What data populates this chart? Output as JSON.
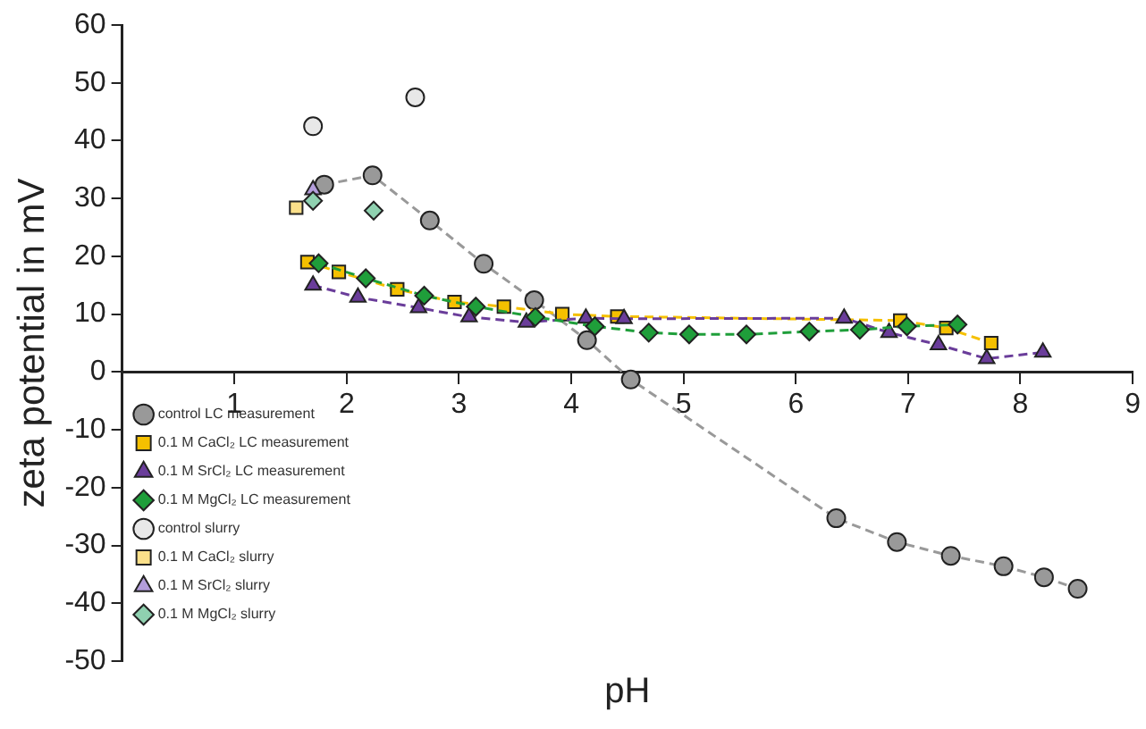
{
  "chart_data": {
    "type": "line",
    "xlabel": "pH",
    "ylabel": "zeta potential in mV",
    "xlim": [
      0,
      9
    ],
    "xticks": [
      1,
      2,
      3,
      4,
      5,
      6,
      7,
      8,
      9
    ],
    "ylim": [
      -50,
      60
    ],
    "yticks": [
      -50,
      -40,
      -30,
      -20,
      -10,
      0,
      10,
      20,
      30,
      40,
      50,
      60
    ],
    "grid": false,
    "legend": "bottom left",
    "series": [
      {
        "name": "control LC measurement",
        "type": "line",
        "color": "#999999",
        "marker": "circle",
        "line_style": "dashed",
        "x": [
          1.8,
          2.23,
          2.74,
          3.22,
          3.67,
          4.14,
          4.53,
          6.36,
          6.9,
          7.38,
          7.85,
          8.21,
          8.51
        ],
        "values": [
          32.4,
          34,
          26.2,
          18.7,
          12.4,
          5.5,
          -1.3,
          -25.3,
          -29.4,
          -31.8,
          -33.6,
          -35.5,
          -37.5
        ]
      },
      {
        "name": "0.1 M CaCl₂ LC measurement",
        "type": "line",
        "color": "#f5c000",
        "marker": "square",
        "line_style": "dashed",
        "x": [
          1.65,
          1.93,
          2.45,
          2.96,
          3.4,
          3.92,
          4.41,
          6.93,
          7.34,
          7.74
        ],
        "values": [
          19,
          17.3,
          14.3,
          12.1,
          11.3,
          10,
          9.6,
          8.9,
          7.6,
          5
        ]
      },
      {
        "name": "0.1 M SrCl₂ LC measurement",
        "type": "line",
        "color": "#6a3d9a",
        "marker": "triangle",
        "line_style": "dashed",
        "x": [
          1.7,
          2.1,
          2.64,
          3.09,
          3.6,
          4.13,
          4.47,
          6.43,
          6.83,
          7.27,
          7.7,
          8.2
        ],
        "values": [
          15,
          12.9,
          11.1,
          9.5,
          8.6,
          9.3,
          9.2,
          9.3,
          6.8,
          4.7,
          2.3,
          3.4
        ]
      },
      {
        "name": "0.1 M MgCl₂ LC measurement",
        "type": "line",
        "color": "#1f9e3a",
        "marker": "diamond",
        "line_style": "dashed",
        "x": [
          1.75,
          2.17,
          2.69,
          3.15,
          3.68,
          4.21,
          4.69,
          5.05,
          5.56,
          6.12,
          6.57,
          6.99,
          7.44
        ],
        "values": [
          18.8,
          16.2,
          13.2,
          11.3,
          9.5,
          7.9,
          6.8,
          6.5,
          6.5,
          7,
          7.3,
          7.9,
          8.2
        ]
      },
      {
        "name": "control slurry",
        "type": "scatter",
        "color": "#e8e8e8",
        "marker": "circle",
        "x": [
          1.7,
          2.61
        ],
        "values": [
          42.5,
          47.5
        ]
      },
      {
        "name": "0.1 M CaCl₂ slurry",
        "type": "scatter",
        "color": "#fbe08a",
        "marker": "square",
        "x": [
          1.55
        ],
        "values": [
          28.4
        ]
      },
      {
        "name": "0.1 M SrCl₂ slurry",
        "type": "scatter",
        "color": "#b39ddb",
        "marker": "triangle",
        "x": [
          1.7
        ],
        "values": [
          31.5
        ]
      },
      {
        "name": "0.1 M MgCl₂ slurry",
        "type": "scatter",
        "color": "#8fd1b0",
        "marker": "diamond",
        "x": [
          1.7,
          2.24
        ],
        "values": [
          29.6,
          27.9
        ]
      }
    ]
  }
}
